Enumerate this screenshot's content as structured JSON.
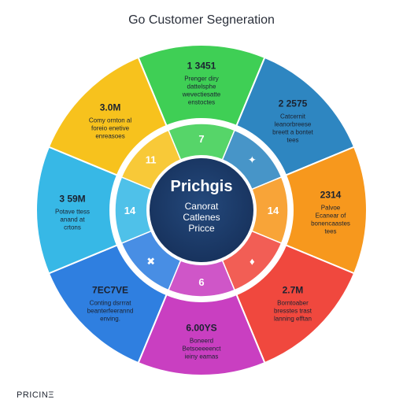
{
  "title": "Go Customer Segneration",
  "brand": "PRICINΞ",
  "center": {
    "heading": "Prichgis",
    "line1": "Canorat",
    "line2": "Catlenes",
    "line3": "Pricce"
  },
  "colors": {
    "green": "#3fcf55",
    "blue": "#2e86c1",
    "orange": "#f7981d",
    "red": "#f0483e",
    "magenta": "#c93fc1",
    "royal": "#2f7fe0",
    "cyan": "#37b8e6",
    "yellow": "#f7c21d",
    "hub": "#1d3a66",
    "ring": "#ffffff"
  },
  "segments": [
    {
      "color_key": "green",
      "value": "1 3451",
      "desc": [
        "Prenger diry",
        "dattelsphe",
        "wevectiesatte",
        "enstoctes"
      ],
      "inner": "7"
    },
    {
      "color_key": "blue",
      "value": "2 2575",
      "desc": [
        "Catcernit",
        "leanorbreese",
        "breett a bontet",
        "tees"
      ],
      "inner": "✦"
    },
    {
      "color_key": "orange",
      "value": "2314",
      "desc": [
        "Palvoe",
        "Ecanear of",
        "bonencaastes",
        "tees"
      ],
      "inner": "14"
    },
    {
      "color_key": "red",
      "value": "2.7M",
      "desc": [
        "Borntoaber",
        "bresstes trast",
        "lanning efftan"
      ],
      "inner": "♦"
    },
    {
      "color_key": "magenta",
      "value": "6.00YS",
      "desc": [
        "Boneerd",
        "Betsoeeeenct",
        "ieiny eamas"
      ],
      "inner": "6"
    },
    {
      "color_key": "royal",
      "value": "7EC7VE",
      "desc": [
        "Conting dsrrrat",
        "beanterfeerannd",
        "enving."
      ],
      "inner": "✖"
    },
    {
      "color_key": "cyan",
      "value": "3 59M",
      "desc": [
        "Potave ttess",
        "anand at",
        "crtons"
      ],
      "inner": "14"
    },
    {
      "color_key": "yellow",
      "value": "3.0M",
      "desc": [
        "Comy ornton al",
        "foreio enetive",
        "enreasoes"
      ],
      "inner": "11"
    }
  ]
}
